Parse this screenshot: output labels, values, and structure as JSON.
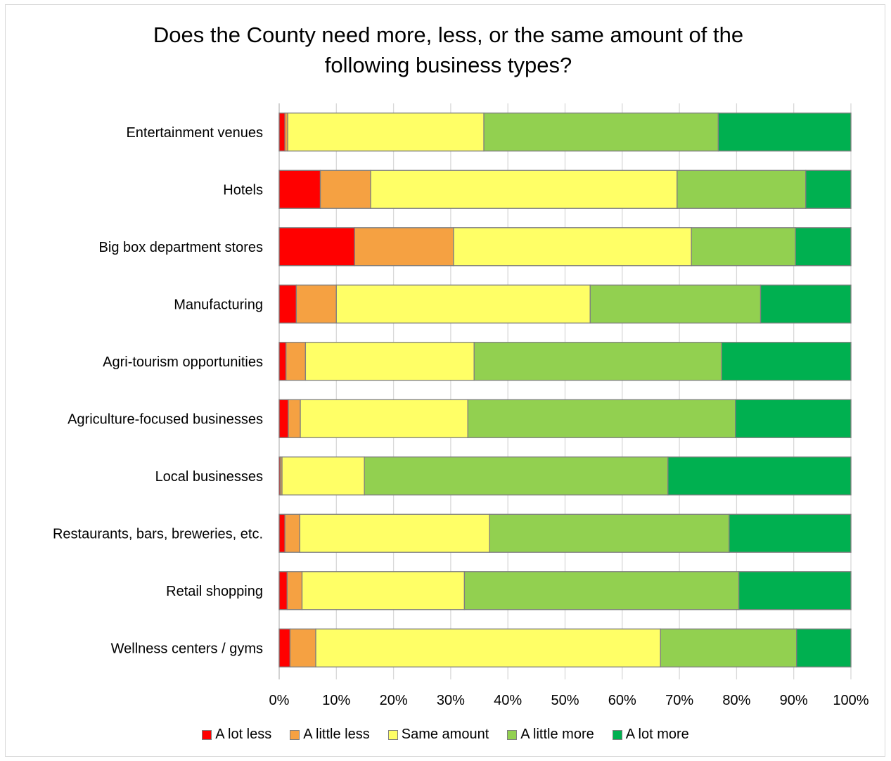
{
  "chart_data": {
    "type": "bar",
    "orientation": "horizontal",
    "stacked": true,
    "percent": true,
    "title": "Does the County need more, less, or the same amount of the\nfollowing business types?",
    "categories": [
      "Entertainment venues",
      "Hotels",
      "Big box department stores",
      "Manufacturing",
      "Agri-tourism opportunities",
      "Agriculture-focused businesses",
      "Local businesses",
      "Restaurants, bars, breweries, etc.",
      "Retail shopping",
      "Wellness centers / gyms"
    ],
    "series": [
      {
        "name": "A lot less",
        "color": "#ff0000",
        "values": [
          1.0,
          7.2,
          13.2,
          3.0,
          1.2,
          1.6,
          0.2,
          1.0,
          1.4,
          1.9
        ]
      },
      {
        "name": "A little less",
        "color": "#f5a142",
        "values": [
          0.5,
          8.8,
          17.3,
          7.0,
          3.4,
          2.1,
          0.3,
          2.6,
          2.6,
          4.5
        ]
      },
      {
        "name": "Same amount",
        "color": "#ffff66",
        "values": [
          34.3,
          53.6,
          41.6,
          44.4,
          29.5,
          29.3,
          14.4,
          33.2,
          28.4,
          60.3
        ]
      },
      {
        "name": "A little more",
        "color": "#92d050",
        "values": [
          41.0,
          22.5,
          18.2,
          29.8,
          43.3,
          46.8,
          53.1,
          41.9,
          48.0,
          23.8
        ]
      },
      {
        "name": "A lot more",
        "color": "#00b050",
        "values": [
          23.2,
          7.9,
          9.7,
          15.8,
          22.6,
          20.2,
          32.0,
          21.3,
          19.6,
          9.5
        ]
      }
    ],
    "xlim": [
      0,
      100
    ],
    "xticks": [
      "0%",
      "10%",
      "20%",
      "30%",
      "40%",
      "50%",
      "60%",
      "70%",
      "80%",
      "90%",
      "100%"
    ],
    "grid": true,
    "legend_position": "bottom"
  }
}
